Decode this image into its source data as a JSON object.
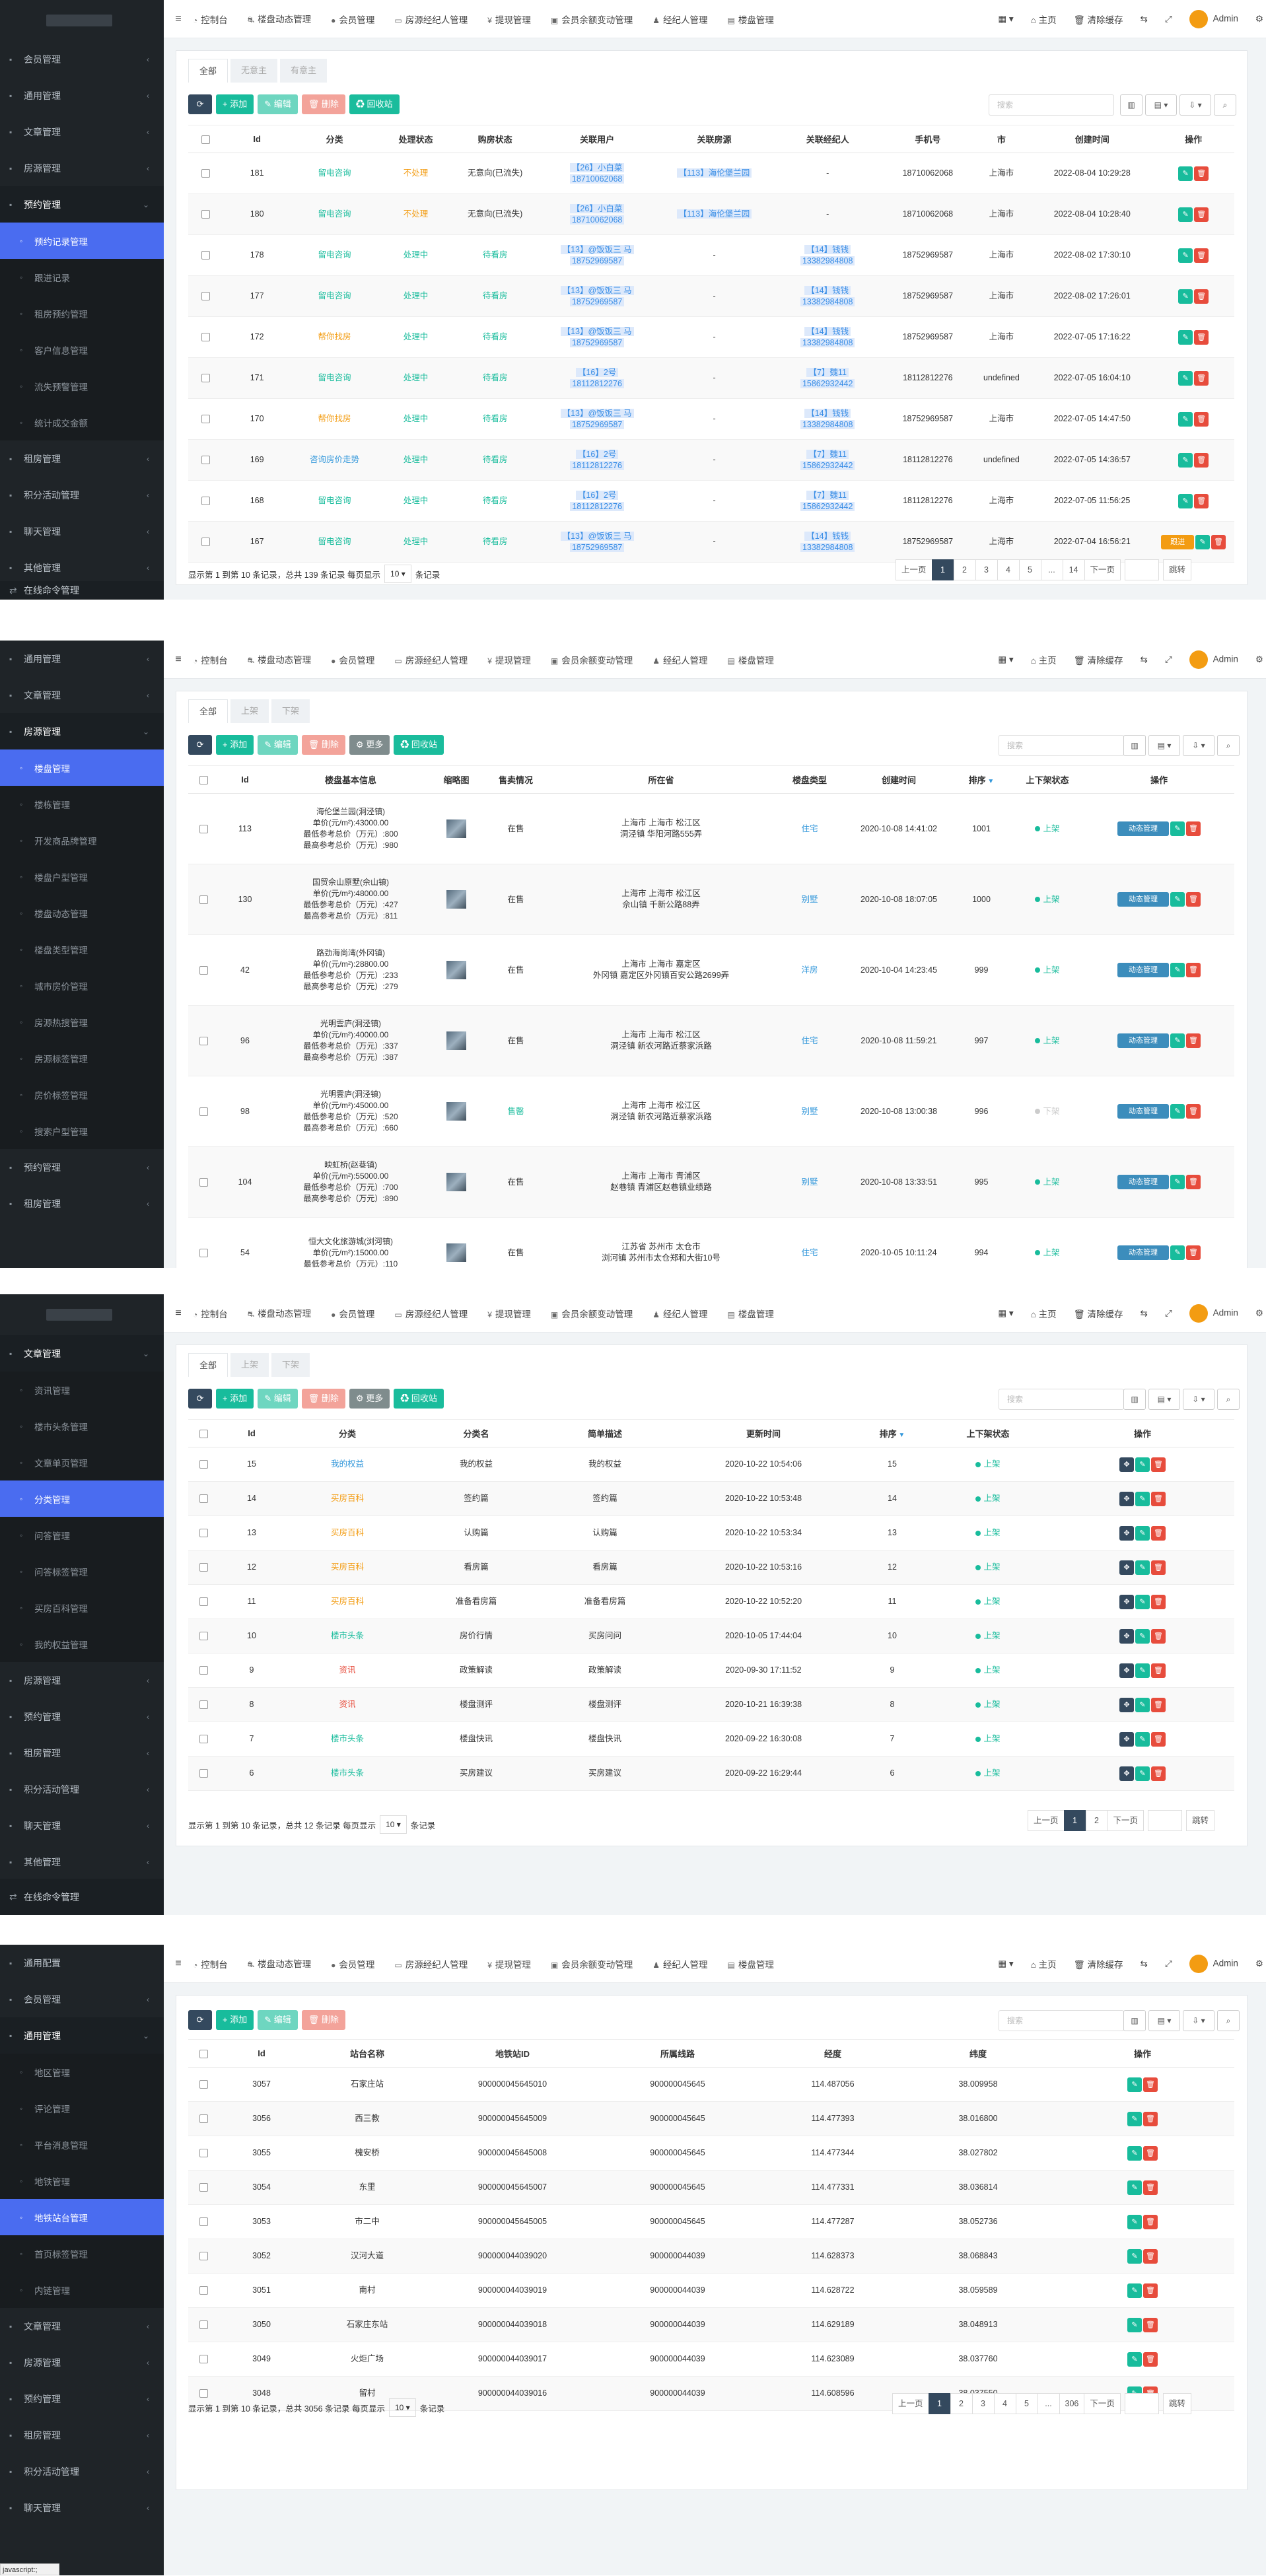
{
  "topnav": [
    {
      "icon": "dashboard-icon",
      "glyph": "◔",
      "label": "控制台"
    },
    {
      "icon": "car-icon",
      "glyph": "⛐",
      "label": "楼盘动态管理"
    },
    {
      "icon": "user-icon",
      "glyph": "●",
      "label": "会员管理"
    },
    {
      "icon": "id-card-icon",
      "glyph": "▭",
      "label": "房源经纪人管理"
    },
    {
      "icon": "yen-icon",
      "glyph": "¥",
      "label": "提现管理"
    },
    {
      "icon": "money-icon",
      "glyph": "▣",
      "label": "会员余额变动管理"
    },
    {
      "icon": "user-secret-icon",
      "glyph": "♟",
      "label": "经纪人管理"
    },
    {
      "icon": "file-icon",
      "glyph": "▤",
      "label": "楼盘管理"
    }
  ],
  "topright": {
    "home": "主页",
    "clear": "清除缓存",
    "admin": "Admin"
  },
  "panel1": {
    "sidebar": [
      {
        "t": "item",
        "label": "会员管理",
        "arrow": "‹"
      },
      {
        "t": "item",
        "label": "通用管理",
        "arrow": "‹"
      },
      {
        "t": "item",
        "label": "文章管理",
        "arrow": "‹"
      },
      {
        "t": "item",
        "label": "房源管理",
        "arrow": "‹"
      },
      {
        "t": "open",
        "label": "预约管理",
        "arrow": "⌄"
      },
      {
        "t": "active",
        "label": "预约记录管理"
      },
      {
        "t": "sub",
        "label": "跟进记录"
      },
      {
        "t": "sub",
        "label": "租房预约管理"
      },
      {
        "t": "sub",
        "label": "客户信息管理"
      },
      {
        "t": "sub",
        "label": "流失预警管理"
      },
      {
        "t": "sub",
        "label": "统计成交金额"
      },
      {
        "t": "item",
        "label": "租房管理",
        "arrow": "‹"
      },
      {
        "t": "item",
        "label": "积分活动管理",
        "arrow": "‹"
      },
      {
        "t": "item",
        "label": "聊天管理",
        "arrow": "‹"
      },
      {
        "t": "item",
        "label": "其他管理",
        "arrow": "‹"
      }
    ],
    "online": "在线命令管理",
    "tabs": [
      "全部",
      "无意主",
      "有意主"
    ],
    "buttons": [
      "添加",
      "编辑",
      "删除",
      "回收站"
    ],
    "search": "搜索",
    "headers": [
      "Id",
      "分类",
      "处理状态",
      "购房状态",
      "关联用户",
      "关联房源",
      "关联经纪人",
      "手机号",
      "市",
      "创建时间",
      "操作"
    ],
    "rows": [
      {
        "id": "181",
        "cat": "留电咨询",
        "catc": "green",
        "st": "不处理",
        "stc": "orange",
        "buy": "无意向(已流失)",
        "buyc": "",
        "user": [
          "【26】小白菜",
          "18710062068"
        ],
        "house": "【113】海伦堡兰园",
        "agent": [
          "-"
        ],
        "phone": "18710062068",
        "city": "上海市",
        "time": "2022-08-04 10:29:28",
        "extra": ""
      },
      {
        "id": "180",
        "cat": "留电咨询",
        "catc": "green",
        "st": "不处理",
        "stc": "orange",
        "buy": "无意向(已流失)",
        "buyc": "",
        "user": [
          "【26】小白菜",
          "18710062068"
        ],
        "house": "【113】海伦堡兰园",
        "agent": [
          "-"
        ],
        "phone": "18710062068",
        "city": "上海市",
        "time": "2022-08-04 10:28:40",
        "extra": ""
      },
      {
        "id": "178",
        "cat": "留电咨询",
        "catc": "green",
        "st": "处理中",
        "stc": "green",
        "buy": "待看房",
        "buyc": "green",
        "user": [
          "【13】@饭饭三 马",
          "18752969587"
        ],
        "house": "-",
        "agent": [
          "【14】钱钱",
          "13382984808"
        ],
        "phone": "18752969587",
        "city": "上海市",
        "time": "2022-08-02 17:30:10",
        "extra": ""
      },
      {
        "id": "177",
        "cat": "留电咨询",
        "catc": "green",
        "st": "处理中",
        "stc": "green",
        "buy": "待看房",
        "buyc": "green",
        "user": [
          "【13】@饭饭三 马",
          "18752969587"
        ],
        "house": "-",
        "agent": [
          "【14】钱钱",
          "13382984808"
        ],
        "phone": "18752969587",
        "city": "上海市",
        "time": "2022-08-02 17:26:01",
        "extra": ""
      },
      {
        "id": "172",
        "cat": "帮你找房",
        "catc": "orange",
        "st": "处理中",
        "stc": "green",
        "buy": "待看房",
        "buyc": "green",
        "user": [
          "【13】@饭饭三 马",
          "18752969587"
        ],
        "house": "-",
        "agent": [
          "【14】钱钱",
          "13382984808"
        ],
        "phone": "18752969587",
        "city": "上海市",
        "time": "2022-07-05 17:16:22",
        "extra": ""
      },
      {
        "id": "171",
        "cat": "留电咨询",
        "catc": "green",
        "st": "处理中",
        "stc": "green",
        "buy": "待看房",
        "buyc": "green",
        "user": [
          "【16】2号",
          "18112812276"
        ],
        "house": "-",
        "agent": [
          "【7】魏11",
          "15862932442"
        ],
        "phone": "18112812276",
        "city": "undefined",
        "time": "2022-07-05 16:04:10",
        "extra": ""
      },
      {
        "id": "170",
        "cat": "帮你找房",
        "catc": "orange",
        "st": "处理中",
        "stc": "green",
        "buy": "待看房",
        "buyc": "green",
        "user": [
          "【13】@饭饭三 马",
          "18752969587"
        ],
        "house": "-",
        "agent": [
          "【14】钱钱",
          "13382984808"
        ],
        "phone": "18752969587",
        "city": "上海市",
        "time": "2022-07-05 14:47:50",
        "extra": ""
      },
      {
        "id": "169",
        "cat": "咨询房价走势",
        "catc": "blue",
        "st": "处理中",
        "stc": "green",
        "buy": "待看房",
        "buyc": "green",
        "user": [
          "【16】2号",
          "18112812276"
        ],
        "house": "-",
        "agent": [
          "【7】魏11",
          "15862932442"
        ],
        "phone": "18112812276",
        "city": "undefined",
        "time": "2022-07-05 14:36:57",
        "extra": ""
      },
      {
        "id": "168",
        "cat": "留电咨询",
        "catc": "green",
        "st": "处理中",
        "stc": "green",
        "buy": "待看房",
        "buyc": "green",
        "user": [
          "【16】2号",
          "18112812276"
        ],
        "house": "-",
        "agent": [
          "【7】魏11",
          "15862932442"
        ],
        "phone": "18112812276",
        "city": "上海市",
        "time": "2022-07-05 11:56:25",
        "extra": ""
      },
      {
        "id": "167",
        "cat": "留电咨询",
        "catc": "green",
        "st": "处理中",
        "stc": "green",
        "buy": "待看房",
        "buyc": "green",
        "user": [
          "【13】@饭饭三 马",
          "18752969587"
        ],
        "house": "-",
        "agent": [
          "【14】钱钱",
          "13382984808"
        ],
        "phone": "18752969587",
        "city": "上海市",
        "time": "2022-07-04 16:56:21",
        "extra": "跟进"
      }
    ],
    "pinfo": [
      "显示第 1 到第 10 条记录，总共 139 条记录 每页显示",
      "10",
      "条记录"
    ],
    "pages": [
      "上一页",
      "1",
      "2",
      "3",
      "4",
      "5",
      "...",
      "14",
      "下一页"
    ],
    "jump": "跳转"
  },
  "panel2": {
    "sidebar": [
      {
        "t": "item",
        "label": "通用管理",
        "arrow": "‹"
      },
      {
        "t": "item",
        "label": "文章管理",
        "arrow": "‹"
      },
      {
        "t": "open",
        "label": "房源管理",
        "arrow": "⌄"
      },
      {
        "t": "active",
        "label": "楼盘管理"
      },
      {
        "t": "sub",
        "label": "楼栋管理"
      },
      {
        "t": "sub",
        "label": "开发商品牌管理"
      },
      {
        "t": "sub",
        "label": "楼盘户型管理"
      },
      {
        "t": "sub",
        "label": "楼盘动态管理"
      },
      {
        "t": "sub",
        "label": "楼盘类型管理"
      },
      {
        "t": "sub",
        "label": "城市房价管理"
      },
      {
        "t": "sub",
        "label": "房源热搜管理"
      },
      {
        "t": "sub",
        "label": "房源标签管理"
      },
      {
        "t": "sub",
        "label": "房价标签管理"
      },
      {
        "t": "sub",
        "label": "搜索户型管理"
      },
      {
        "t": "item",
        "label": "预约管理",
        "arrow": "‹"
      },
      {
        "t": "item",
        "label": "租房管理",
        "arrow": "‹"
      }
    ],
    "tabs": [
      "全部",
      "上架",
      "下架"
    ],
    "buttons": [
      "添加",
      "编辑",
      "删除",
      "更多",
      "回收站"
    ],
    "search": "搜索",
    "headers": [
      "Id",
      "楼盘基本信息",
      "缩略图",
      "售卖情况",
      "所在省",
      "楼盘类型",
      "创建时间",
      "排序",
      "上下架状态",
      "操作"
    ],
    "rows": [
      {
        "id": "113",
        "info": [
          "海伦堡兰园(洞泾镇)",
          "单价(元/m²):43000.00",
          "最低参考总价（万元）:800",
          "最高参考总价（万元）:980"
        ],
        "sale": "在售",
        "salec": "",
        "loc": [
          "上海市 上海市 松江区",
          "洞泾镇 华阳河路555弄"
        ],
        "type": "住宅",
        "time": "2020-10-08 14:41:02",
        "sort": "1001",
        "on": "上架",
        "onc": "green",
        "op": "动态管理"
      },
      {
        "id": "130",
        "info": [
          "国贸佘山原墅(佘山镇)",
          "单价(元/m²):48000.00",
          "最低参考总价（万元）:427",
          "最高参考总价（万元）:811"
        ],
        "sale": "在售",
        "salec": "",
        "loc": [
          "上海市 上海市 松江区",
          "佘山镇 千新公路88弄"
        ],
        "type": "别墅",
        "time": "2020-10-08 18:07:05",
        "sort": "1000",
        "on": "上架",
        "onc": "green",
        "op": "动态管理"
      },
      {
        "id": "42",
        "info": [
          "路劲海尚湾(外冈镇)",
          "单价(元/m²):28800.00",
          "最低参考总价（万元）:233",
          "最高参考总价（万元）:279"
        ],
        "sale": "在售",
        "salec": "",
        "loc": [
          "上海市 上海市 嘉定区",
          "外冈镇 嘉定区外冈镇百安公路2699弄"
        ],
        "type": "洋房",
        "time": "2020-10-04 14:23:45",
        "sort": "999",
        "on": "上架",
        "onc": "green",
        "op": "动态管理"
      },
      {
        "id": "96",
        "info": [
          "光明雲庐(洞泾镇)",
          "单价(元/m²):40000.00",
          "最低参考总价（万元）:337",
          "最高参考总价（万元）:387"
        ],
        "sale": "在售",
        "salec": "",
        "loc": [
          "上海市 上海市 松江区",
          "洞泾镇 新农河路近蔡家浜路"
        ],
        "type": "住宅",
        "time": "2020-10-08 11:59:21",
        "sort": "997",
        "on": "上架",
        "onc": "green",
        "op": "动态管理"
      },
      {
        "id": "98",
        "info": [
          "光明雲庐(洞泾镇)",
          "单价(元/m²):45000.00",
          "最低参考总价（万元）:520",
          "最高参考总价（万元）:660"
        ],
        "sale": "售罄",
        "salec": "green",
        "loc": [
          "上海市 上海市 松江区",
          "洞泾镇 新农河路近蔡家浜路"
        ],
        "type": "别墅",
        "time": "2020-10-08 13:00:38",
        "sort": "996",
        "on": "下架",
        "onc": "gray",
        "op": "动态管理"
      },
      {
        "id": "104",
        "info": [
          "映虹桥(赵巷镇)",
          "单价(元/m²):55000.00",
          "最低参考总价（万元）:700",
          "最高参考总价（万元）:890"
        ],
        "sale": "在售",
        "salec": "",
        "loc": [
          "上海市 上海市 青浦区",
          "赵巷镇 青浦区赵巷镇业绩路"
        ],
        "type": "别墅",
        "time": "2020-10-08 13:33:51",
        "sort": "995",
        "on": "上架",
        "onc": "green",
        "op": "动态管理"
      },
      {
        "id": "54",
        "info": [
          "恒大文化旅游城(浏河镇)",
          "单价(元/m²):15000.00",
          "最低参考总价（万元）:110"
        ],
        "sale": "在售",
        "salec": "",
        "loc": [
          "江苏省 苏州市 太仓市",
          "浏河镇 苏州市太仓郑和大街10号"
        ],
        "type": "住宅",
        "time": "2020-10-05 10:11:24",
        "sort": "994",
        "on": "上架",
        "onc": "green",
        "op": "动态管理"
      }
    ]
  },
  "panel3": {
    "sidebar": [
      {
        "t": "open",
        "label": "文章管理",
        "arrow": "⌄"
      },
      {
        "t": "sub",
        "label": "资讯管理"
      },
      {
        "t": "sub",
        "label": "楼市头条管理"
      },
      {
        "t": "sub",
        "label": "文章单页管理"
      },
      {
        "t": "active",
        "label": "分类管理"
      },
      {
        "t": "sub",
        "label": "问答管理"
      },
      {
        "t": "sub",
        "label": "问答标签管理"
      },
      {
        "t": "sub",
        "label": "买房百科管理"
      },
      {
        "t": "sub",
        "label": "我的权益管理"
      },
      {
        "t": "item",
        "label": "房源管理",
        "arrow": "‹"
      },
      {
        "t": "item",
        "label": "预约管理",
        "arrow": "‹"
      },
      {
        "t": "item",
        "label": "租房管理",
        "arrow": "‹"
      },
      {
        "t": "item",
        "label": "积分活动管理",
        "arrow": "‹"
      },
      {
        "t": "item",
        "label": "聊天管理",
        "arrow": "‹"
      },
      {
        "t": "item",
        "label": "其他管理",
        "arrow": "‹"
      }
    ],
    "online": "在线命令管理",
    "tabs": [
      "全部",
      "上架",
      "下架"
    ],
    "buttons": [
      "添加",
      "编辑",
      "删除",
      "更多",
      "回收站"
    ],
    "search": "搜索",
    "headers": [
      "Id",
      "分类",
      "分类名",
      "简单描述",
      "更新时间",
      "排序",
      "上下架状态",
      "操作"
    ],
    "rows": [
      {
        "id": "15",
        "cat": "我的权益",
        "catc": "blue",
        "name": "我的权益",
        "desc": "我的权益",
        "time": "2020-10-22 10:54:06",
        "sort": "15",
        "on": "上架"
      },
      {
        "id": "14",
        "cat": "买房百科",
        "catc": "orange",
        "name": "签约篇",
        "desc": "签约篇",
        "time": "2020-10-22 10:53:48",
        "sort": "14",
        "on": "上架"
      },
      {
        "id": "13",
        "cat": "买房百科",
        "catc": "orange",
        "name": "认购篇",
        "desc": "认购篇",
        "time": "2020-10-22 10:53:34",
        "sort": "13",
        "on": "上架"
      },
      {
        "id": "12",
        "cat": "买房百科",
        "catc": "orange",
        "name": "看房篇",
        "desc": "看房篇",
        "time": "2020-10-22 10:53:16",
        "sort": "12",
        "on": "上架"
      },
      {
        "id": "11",
        "cat": "买房百科",
        "catc": "orange",
        "name": "准备看房篇",
        "desc": "准备看房篇",
        "time": "2020-10-22 10:52:20",
        "sort": "11",
        "on": "上架"
      },
      {
        "id": "10",
        "cat": "楼市头条",
        "catc": "green",
        "name": "房价行情",
        "desc": "买房问问",
        "time": "2020-10-05 17:44:04",
        "sort": "10",
        "on": "上架"
      },
      {
        "id": "9",
        "cat": "资讯",
        "catc": "red",
        "name": "政策解读",
        "desc": "政策解读",
        "time": "2020-09-30 17:11:52",
        "sort": "9",
        "on": "上架"
      },
      {
        "id": "8",
        "cat": "资讯",
        "catc": "red",
        "name": "楼盘测评",
        "desc": "楼盘测评",
        "time": "2020-10-21 16:39:38",
        "sort": "8",
        "on": "上架"
      },
      {
        "id": "7",
        "cat": "楼市头条",
        "catc": "green",
        "name": "楼盘快讯",
        "desc": "楼盘快讯",
        "time": "2020-09-22 16:30:08",
        "sort": "7",
        "on": "上架"
      },
      {
        "id": "6",
        "cat": "楼市头条",
        "catc": "green",
        "name": "买房建议",
        "desc": "买房建议",
        "time": "2020-09-22 16:29:44",
        "sort": "6",
        "on": "上架"
      }
    ],
    "pinfo": [
      "显示第 1 到第 10 条记录，总共 12 条记录 每页显示",
      "10",
      "条记录"
    ],
    "pages": [
      "上一页",
      "1",
      "2",
      "下一页"
    ],
    "jump": "跳转"
  },
  "panel4": {
    "sidebar": [
      {
        "t": "item",
        "label": "通用配置",
        "arrow": ""
      },
      {
        "t": "item",
        "label": "会员管理",
        "arrow": "‹"
      },
      {
        "t": "open",
        "label": "通用管理",
        "arrow": "⌄"
      },
      {
        "t": "sub",
        "label": "地区管理"
      },
      {
        "t": "sub",
        "label": "评论管理"
      },
      {
        "t": "sub",
        "label": "平台消息管理"
      },
      {
        "t": "sub",
        "label": "地铁管理"
      },
      {
        "t": "active",
        "label": "地铁站台管理"
      },
      {
        "t": "sub",
        "label": "首页标签管理"
      },
      {
        "t": "sub",
        "label": "内链管理"
      },
      {
        "t": "item",
        "label": "文章管理",
        "arrow": "‹"
      },
      {
        "t": "item",
        "label": "房源管理",
        "arrow": "‹"
      },
      {
        "t": "item",
        "label": "预约管理",
        "arrow": "‹"
      },
      {
        "t": "item",
        "label": "租房管理",
        "arrow": "‹"
      },
      {
        "t": "item",
        "label": "积分活动管理",
        "arrow": "‹"
      },
      {
        "t": "item",
        "label": "聊天管理",
        "arrow": "‹"
      }
    ],
    "buttons": [
      "添加",
      "编辑",
      "删除"
    ],
    "search": "搜索",
    "headers": [
      "Id",
      "站台名称",
      "地铁站ID",
      "所属线路",
      "经度",
      "纬度",
      "操作"
    ],
    "rows": [
      [
        "3057",
        "石家庄站",
        "900000045645010",
        "900000045645",
        "114.487056",
        "38.009958"
      ],
      [
        "3056",
        "西三教",
        "900000045645009",
        "900000045645",
        "114.477393",
        "38.016800"
      ],
      [
        "3055",
        "槐安桥",
        "900000045645008",
        "900000045645",
        "114.477344",
        "38.027802"
      ],
      [
        "3054",
        "东里",
        "900000045645007",
        "900000045645",
        "114.477331",
        "38.036814"
      ],
      [
        "3053",
        "市二中",
        "900000045645005",
        "900000045645",
        "114.477287",
        "38.052736"
      ],
      [
        "3052",
        "汉河大道",
        "900000044039020",
        "900000044039",
        "114.628373",
        "38.068843"
      ],
      [
        "3051",
        "南村",
        "900000044039019",
        "900000044039",
        "114.628722",
        "38.059589"
      ],
      [
        "3050",
        "石家庄东站",
        "900000044039018",
        "900000044039",
        "114.629189",
        "38.048913"
      ],
      [
        "3049",
        "火炬广场",
        "900000044039017",
        "900000044039",
        "114.623089",
        "38.037760"
      ],
      [
        "3048",
        "留村",
        "900000044039016",
        "900000044039",
        "114.608596",
        "38.037550"
      ]
    ],
    "pinfo": [
      "显示第 1 到第 10 条记录，总共 3056 条记录 每页显示",
      "10",
      "条记录"
    ],
    "pages": [
      "上一页",
      "1",
      "2",
      "3",
      "4",
      "5",
      "...",
      "306",
      "下一页"
    ],
    "jump": "跳转"
  },
  "statusbar": "javascript:;"
}
